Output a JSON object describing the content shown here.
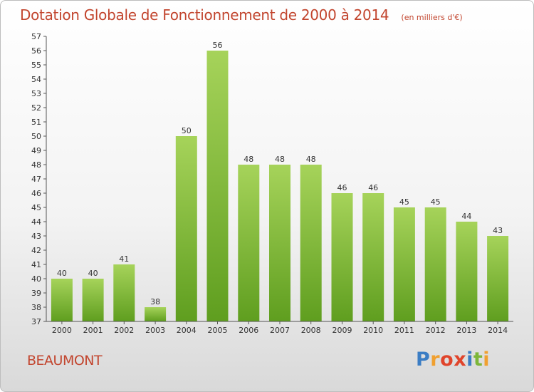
{
  "header": {
    "title": "Dotation Globale de Fonctionnement de 2000 à 2014",
    "subtitle": "(en milliers d'€)"
  },
  "footer": {
    "commune": "BEAUMONT",
    "logo_text": "Proxiti",
    "logo_colors": [
      "#3b7dc4",
      "#f0a030",
      "#e0442b",
      "#e0442b",
      "#3b7dc4",
      "#7cb63a",
      "#f0a030"
    ]
  },
  "chart_data": {
    "type": "bar",
    "title": "Dotation Globale de Fonctionnement de 2000 à 2014",
    "subtitle": "(en milliers d'€)",
    "categories": [
      "2000",
      "2001",
      "2002",
      "2003",
      "2004",
      "2005",
      "2006",
      "2007",
      "2008",
      "2009",
      "2010",
      "2011",
      "2012",
      "2013",
      "2014"
    ],
    "values": [
      40,
      40,
      41,
      38,
      50,
      56,
      48,
      48,
      48,
      46,
      46,
      45,
      45,
      44,
      43
    ],
    "data_labels": [
      "40",
      "40",
      "41",
      "38",
      "50",
      "56",
      "48",
      "48",
      "48",
      "46",
      "46",
      "45",
      "45",
      "44",
      "43"
    ],
    "ylim": [
      37,
      57
    ],
    "yticks": [
      37,
      38,
      39,
      40,
      41,
      42,
      43,
      44,
      45,
      46,
      47,
      48,
      49,
      50,
      51,
      52,
      53,
      54,
      55,
      56,
      57
    ],
    "xlabel": "",
    "ylabel": "",
    "grid": false,
    "bar_color_top": "#a6d35a",
    "bar_color_bottom": "#5f9e1f"
  }
}
